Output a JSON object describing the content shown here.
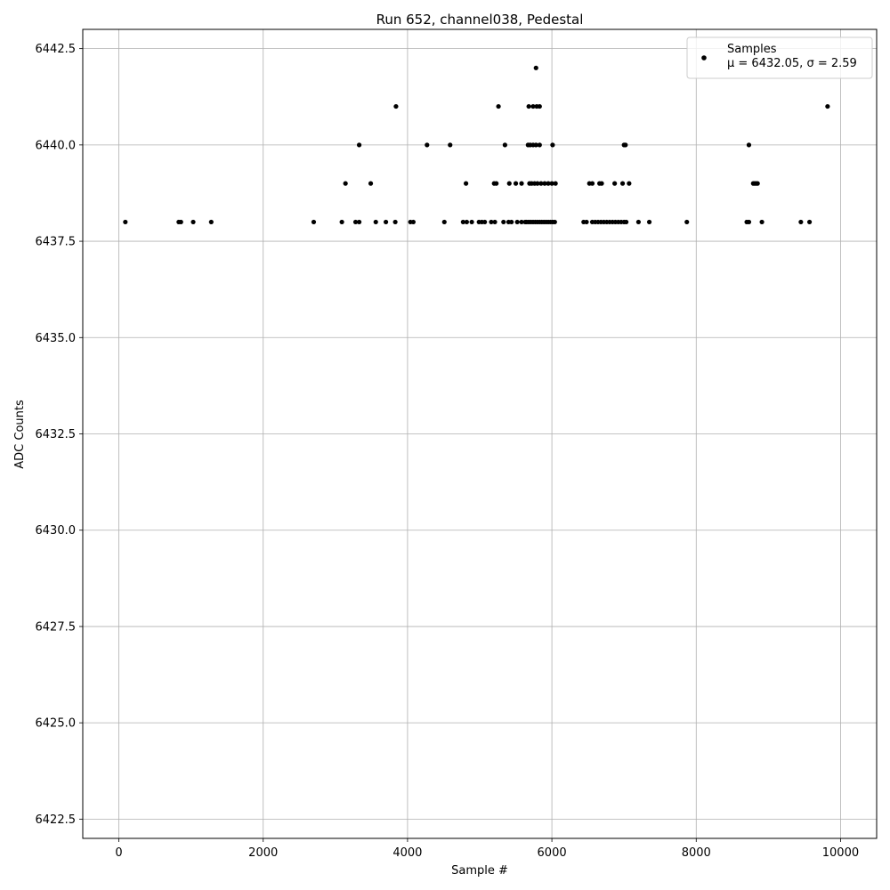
{
  "chart_data": {
    "type": "scatter",
    "title": "Run 652, channel038, Pedestal",
    "xlabel": "Sample #",
    "ylabel": "ADC Counts",
    "xlim": [
      -500,
      10500
    ],
    "ylim": [
      6422.0,
      6443.0
    ],
    "xticks": [
      0,
      2000,
      4000,
      6000,
      8000,
      10000
    ],
    "yticks": [
      6422.5,
      6425.0,
      6427.5,
      6430.0,
      6432.5,
      6435.0,
      6437.5,
      6440.0,
      6442.5
    ],
    "xtick_labels": [
      "0",
      "2000",
      "4000",
      "6000",
      "8000",
      "10000"
    ],
    "ytick_labels": [
      "6422.5",
      "6425.0",
      "6427.5",
      "6430.0",
      "6432.5",
      "6435.0",
      "6437.5",
      "6440.0",
      "6442.5"
    ],
    "grid": true,
    "legend_position": "top-right",
    "legend": {
      "label_line1": "Samples",
      "label_line2": "μ = 6432.05, σ = 2.59"
    },
    "marker_color": "#000000",
    "n_samples": 10000,
    "levels": [
      {
        "y": 6442,
        "x": [
          5780
        ]
      },
      {
        "y": 6441,
        "x": [
          3840,
          5260,
          5680,
          5740,
          5790,
          5830,
          9820
        ]
      },
      {
        "y": 6440,
        "x": [
          3330,
          4270,
          4590,
          5350,
          5670,
          5700,
          5740,
          5780,
          5830,
          6010,
          7000,
          7020,
          8730
        ]
      },
      {
        "y": 6439,
        "x": [
          3140,
          3490,
          4810,
          5200,
          5230,
          5410,
          5500,
          5580,
          5690,
          5720,
          5760,
          5800,
          5850,
          5900,
          5950,
          6000,
          6050,
          6520,
          6560,
          6660,
          6690,
          6870,
          6980,
          7070,
          8790,
          8810,
          8830,
          8850
        ]
      },
      {
        "y": 6438,
        "x": [
          90,
          830,
          860,
          1030,
          1280,
          2700,
          3090,
          3280,
          3330,
          3560,
          3700,
          3830,
          4040,
          4080,
          4510,
          4770,
          4820,
          4890,
          4990,
          5030,
          5070,
          5160,
          5210,
          5330,
          5400,
          5440,
          5520,
          5580,
          5630,
          5650,
          5680,
          5710,
          5740,
          5770,
          5800,
          5830,
          5860,
          5890,
          5920,
          5950,
          5980,
          6010,
          6040,
          6440,
          6480,
          6560,
          6600,
          6640,
          6680,
          6720,
          6760,
          6800,
          6840,
          6880,
          6920,
          6960,
          7000,
          7030,
          7200,
          7350,
          7870,
          8700,
          8730,
          8910,
          9450,
          9570
        ]
      }
    ]
  }
}
